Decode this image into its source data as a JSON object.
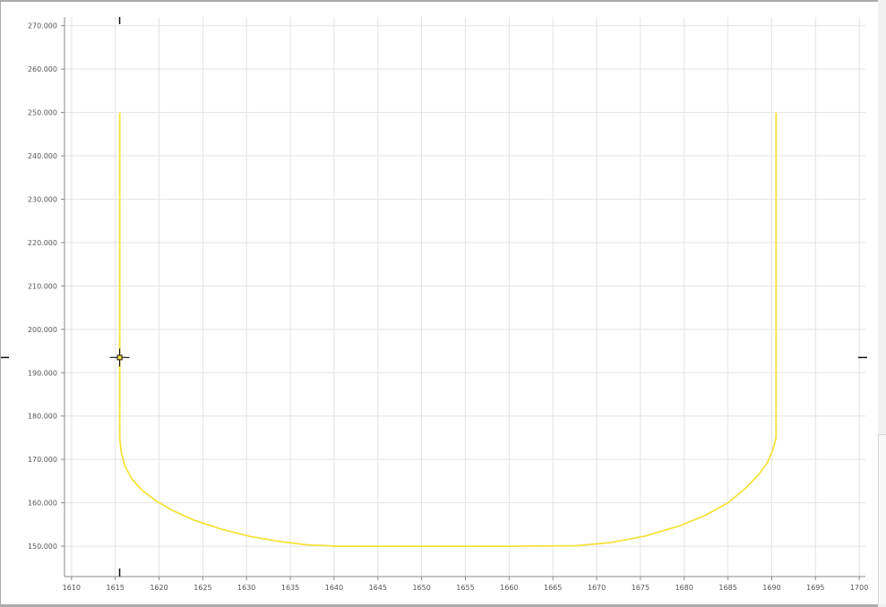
{
  "chart_data": {
    "type": "line",
    "title": "",
    "xlabel": "",
    "ylabel": "",
    "xlim": [
      1609.2,
      1700.7
    ],
    "ylim": [
      143,
      272
    ],
    "x_ticks": [
      1610,
      1615,
      1620,
      1625,
      1630,
      1635,
      1640,
      1645,
      1650,
      1655,
      1660,
      1665,
      1670,
      1675,
      1680,
      1685,
      1690,
      1695,
      1700
    ],
    "x_tick_labels": [
      "1610",
      "1615",
      "1620",
      "1625",
      "1630",
      "1635",
      "1640",
      "1645",
      "1650",
      "1655",
      "1660",
      "1665",
      "1670",
      "1675",
      "1680",
      "1685",
      "1690",
      "1695",
      "1700"
    ],
    "y_ticks": [
      150,
      160,
      170,
      180,
      190,
      200,
      210,
      220,
      230,
      240,
      250,
      260,
      270
    ],
    "y_tick_labels": [
      "150.000",
      "160.000",
      "170.000",
      "180.000",
      "190.000",
      "200.000",
      "210.000",
      "220.000",
      "230.000",
      "240.000",
      "250.000",
      "260.000",
      "270.000"
    ],
    "grid": true,
    "series": [
      {
        "color": "#f5e23a",
        "x": [
          1615.5,
          1615.5,
          1615.7,
          1616.1,
          1616.9,
          1618.0,
          1619.6,
          1621.5,
          1624.0,
          1627.0,
          1630.5,
          1634.0,
          1637.0,
          1639.5,
          1640.0,
          1650.0,
          1660.0,
          1667.5,
          1671.5,
          1675.5,
          1679.5,
          1682.5,
          1685.0,
          1687.0,
          1688.5,
          1689.5,
          1690.1,
          1690.5,
          1690.5
        ],
        "y": [
          250,
          175,
          171.5,
          168.5,
          165.5,
          163.0,
          160.5,
          158.3,
          156.0,
          154.0,
          152.2,
          151.0,
          150.3,
          150.1,
          150,
          150,
          150,
          150.1,
          150.8,
          152.3,
          154.7,
          157.2,
          160.0,
          163.3,
          166.5,
          169.3,
          172.0,
          175,
          250
        ]
      }
    ],
    "cursor": {
      "x": 1615.5,
      "y": 193.5
    }
  }
}
